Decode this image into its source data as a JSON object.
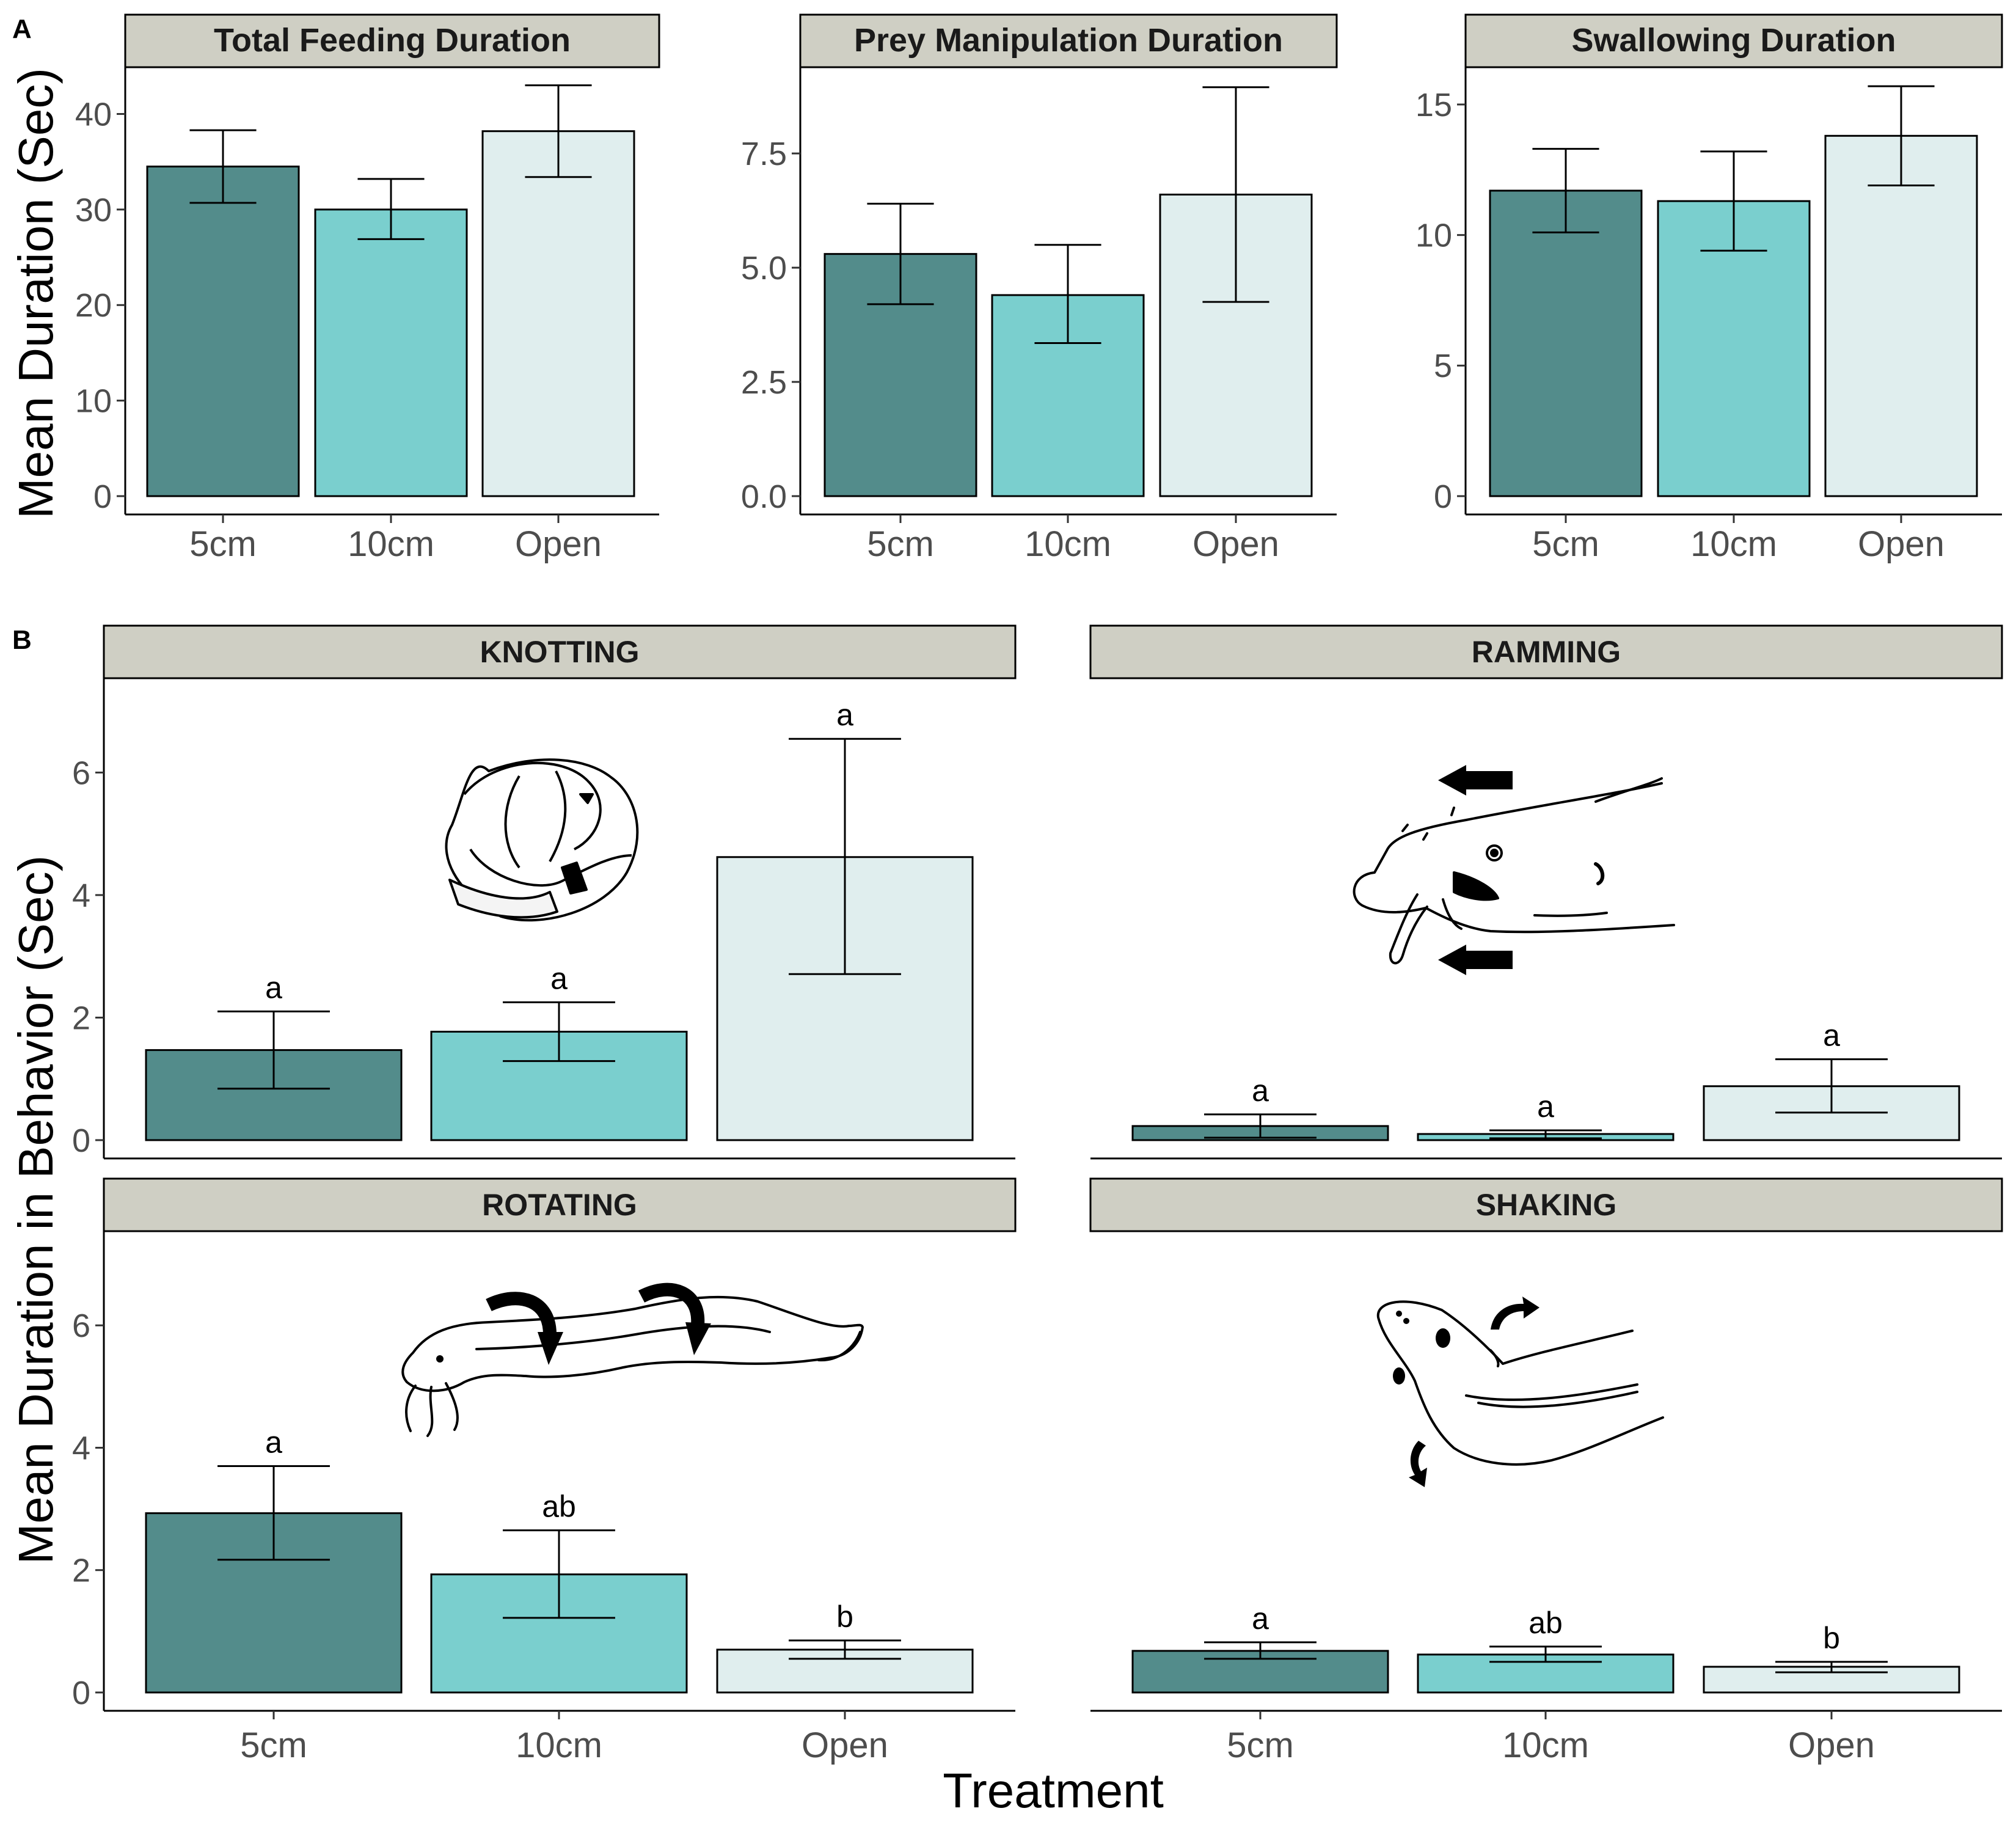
{
  "figure": {
    "panel_labels": [
      "A",
      "B"
    ],
    "y_title_a": "Mean Duration (Sec)",
    "y_title_b": "Mean Duration in Behavior (Sec)",
    "x_title": "Treatment"
  },
  "colors": {
    "5cm": "#538c8b",
    "10cm": "#7acfce",
    "Open": "#e0eeee",
    "strip": "#cfcfc4",
    "error_bar": "#000000"
  },
  "chart_data": [
    {
      "type": "bar",
      "panel": "A",
      "title": "Total Feeding Duration",
      "categories": [
        "5cm",
        "10cm",
        "Open"
      ],
      "values": [
        34.5,
        30.0,
        38.2
      ],
      "error_low": [
        30.7,
        26.9,
        33.4
      ],
      "error_high": [
        38.3,
        33.2,
        43.0
      ],
      "yticks": [
        0,
        10,
        20,
        30,
        40
      ],
      "ylim": [
        0,
        44
      ]
    },
    {
      "type": "bar",
      "panel": "A",
      "title": "Prey Manipulation Duration",
      "categories": [
        "5cm",
        "10cm",
        "Open"
      ],
      "values": [
        5.3,
        4.4,
        6.6
      ],
      "error_low": [
        4.2,
        3.35,
        4.25
      ],
      "error_high": [
        6.4,
        5.5,
        8.95
      ],
      "yticks": [
        0.0,
        2.5,
        5.0,
        7.5
      ],
      "ytick_labels": [
        "0.0",
        "2.5",
        "5.0",
        "7.5"
      ],
      "ylim": [
        0,
        9.2
      ]
    },
    {
      "type": "bar",
      "panel": "A",
      "title": "Swallowing Duration",
      "categories": [
        "5cm",
        "10cm",
        "Open"
      ],
      "values": [
        11.7,
        11.3,
        13.8
      ],
      "error_low": [
        10.1,
        9.4,
        11.9
      ],
      "error_high": [
        13.3,
        13.2,
        15.7
      ],
      "yticks": [
        0,
        5,
        10,
        15
      ],
      "ylim": [
        0,
        16.1
      ]
    },
    {
      "type": "bar",
      "panel": "B",
      "title": "KNOTTING",
      "categories": [
        "5cm",
        "10cm",
        "Open"
      ],
      "values": [
        1.47,
        1.77,
        4.62
      ],
      "error_low": [
        0.84,
        1.29,
        2.71
      ],
      "error_high": [
        2.1,
        2.25,
        6.55
      ],
      "significance": [
        "a",
        "a",
        "a"
      ],
      "yticks": [
        0,
        2,
        4,
        6
      ],
      "ylim": [
        0,
        7.4
      ]
    },
    {
      "type": "bar",
      "panel": "B",
      "title": "RAMMING",
      "categories": [
        "5cm",
        "10cm",
        "Open"
      ],
      "values": [
        0.23,
        0.1,
        0.88
      ],
      "error_low": [
        0.04,
        0.03,
        0.45
      ],
      "error_high": [
        0.42,
        0.16,
        1.32
      ],
      "significance": [
        "a",
        "a",
        "a"
      ],
      "yticks": [
        0,
        2,
        4,
        6
      ],
      "ylim": [
        0,
        7.4
      ]
    },
    {
      "type": "bar",
      "panel": "B",
      "title": "ROTATING",
      "categories": [
        "5cm",
        "10cm",
        "Open"
      ],
      "values": [
        2.93,
        1.93,
        0.7
      ],
      "error_low": [
        2.17,
        1.22,
        0.55
      ],
      "error_high": [
        3.7,
        2.65,
        0.85
      ],
      "significance": [
        "a",
        "ab",
        "b"
      ],
      "yticks": [
        0,
        2,
        4,
        6
      ],
      "ylim": [
        0,
        7.4
      ]
    },
    {
      "type": "bar",
      "panel": "B",
      "title": "SHAKING",
      "categories": [
        "5cm",
        "10cm",
        "Open"
      ],
      "values": [
        0.68,
        0.62,
        0.42
      ],
      "error_low": [
        0.55,
        0.5,
        0.33
      ],
      "error_high": [
        0.82,
        0.75,
        0.5
      ],
      "significance": [
        "a",
        "ab",
        "b"
      ],
      "yticks": [
        0,
        2,
        4,
        6
      ],
      "ylim": [
        0,
        7.4
      ]
    }
  ]
}
